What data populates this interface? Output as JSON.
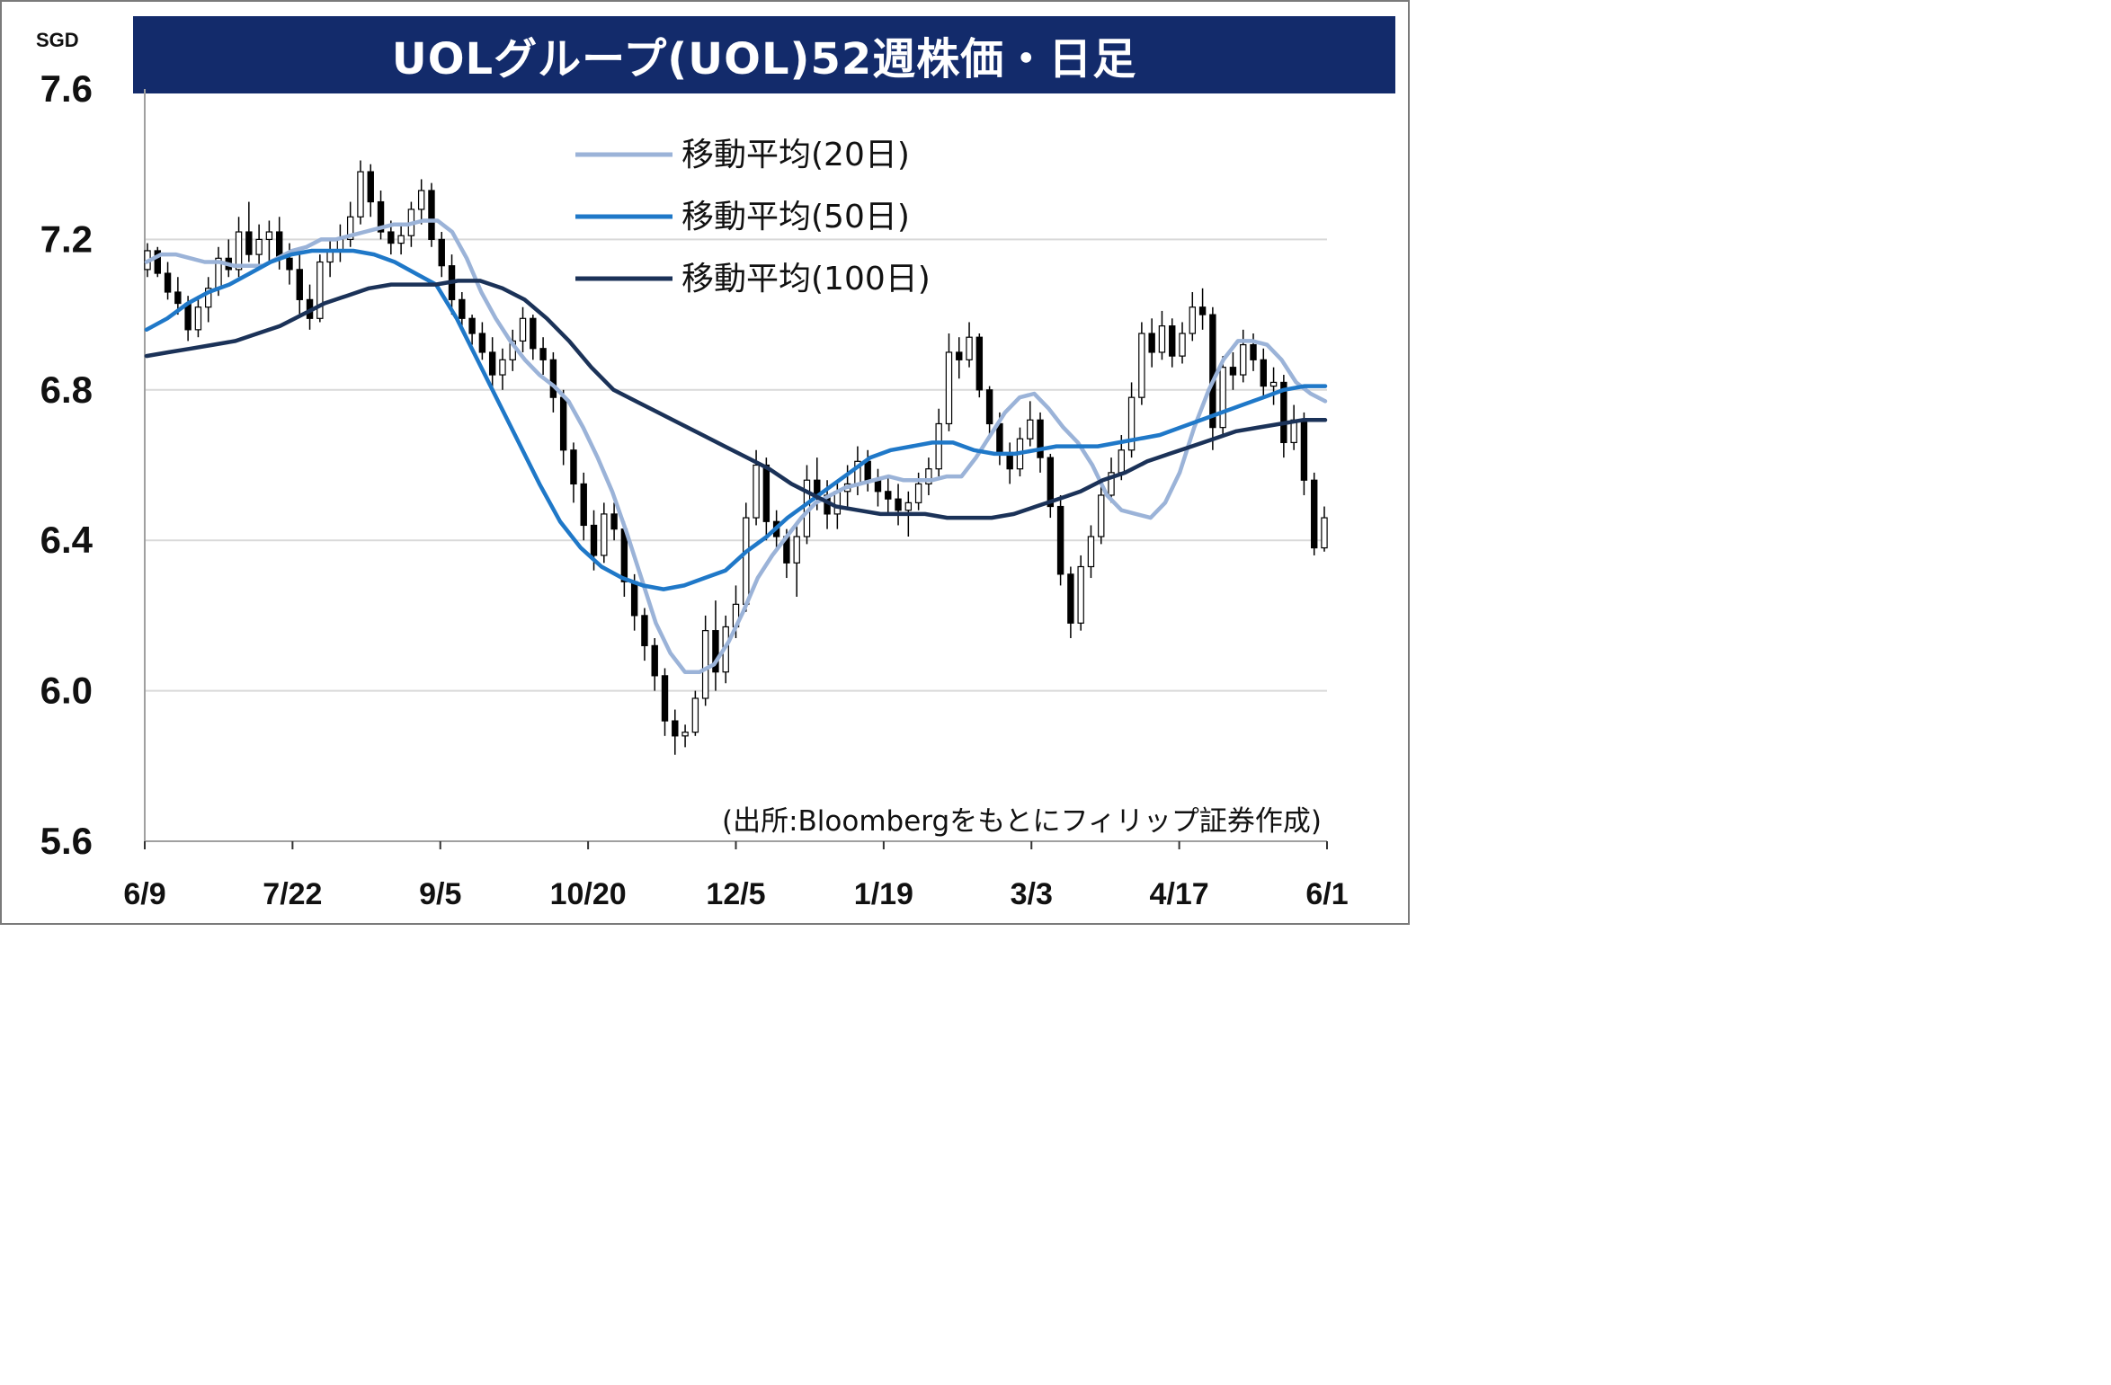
{
  "chart_data": {
    "type": "candlestick",
    "title": "UOLグループ(UOL)52週株価・日足",
    "unit": "SGD",
    "ylim": [
      5.6,
      7.6
    ],
    "yticks": [
      "7.6",
      "7.2",
      "6.8",
      "6.4",
      "6.0",
      "5.6"
    ],
    "ytick_values": [
      7.6,
      7.2,
      6.8,
      6.4,
      6.0,
      5.6
    ],
    "xticks": [
      "6/9",
      "7/22",
      "9/5",
      "10/20",
      "12/5",
      "1/19",
      "3/3",
      "4/17",
      "6/1"
    ],
    "grid": "horizontal",
    "legend_position": "top-right",
    "colors": {
      "up": "#ffffff",
      "down": "#000000",
      "ma20": "#9bb3d8",
      "ma50": "#1f78c8",
      "ma100": "#1b3258",
      "grid": "#d9d9d9",
      "title_bg": "#132b6b"
    },
    "candles": [
      [
        7.12,
        7.19,
        7.1,
        7.17
      ],
      [
        7.17,
        7.18,
        7.1,
        7.11
      ],
      [
        7.11,
        7.14,
        7.04,
        7.06
      ],
      [
        7.06,
        7.1,
        7.0,
        7.03
      ],
      [
        7.03,
        7.05,
        6.93,
        6.96
      ],
      [
        6.96,
        7.05,
        6.94,
        7.02
      ],
      [
        7.02,
        7.1,
        6.98,
        7.07
      ],
      [
        7.07,
        7.18,
        7.05,
        7.15
      ],
      [
        7.15,
        7.2,
        7.1,
        7.12
      ],
      [
        7.12,
        7.26,
        7.1,
        7.22
      ],
      [
        7.22,
        7.3,
        7.14,
        7.16
      ],
      [
        7.16,
        7.24,
        7.12,
        7.2
      ],
      [
        7.2,
        7.25,
        7.14,
        7.22
      ],
      [
        7.22,
        7.26,
        7.12,
        7.15
      ],
      [
        7.15,
        7.19,
        7.08,
        7.12
      ],
      [
        7.12,
        7.16,
        7.0,
        7.04
      ],
      [
        7.04,
        7.08,
        6.96,
        6.99
      ],
      [
        6.99,
        7.16,
        6.98,
        7.14
      ],
      [
        7.14,
        7.2,
        7.1,
        7.17
      ],
      [
        7.17,
        7.24,
        7.14,
        7.2
      ],
      [
        7.2,
        7.3,
        7.18,
        7.26
      ],
      [
        7.26,
        7.41,
        7.24,
        7.38
      ],
      [
        7.38,
        7.4,
        7.26,
        7.3
      ],
      [
        7.3,
        7.33,
        7.2,
        7.22
      ],
      [
        7.22,
        7.25,
        7.16,
        7.19
      ],
      [
        7.19,
        7.24,
        7.16,
        7.21
      ],
      [
        7.21,
        7.3,
        7.18,
        7.28
      ],
      [
        7.28,
        7.36,
        7.24,
        7.33
      ],
      [
        7.33,
        7.35,
        7.18,
        7.2
      ],
      [
        7.2,
        7.22,
        7.1,
        7.13
      ],
      [
        7.13,
        7.16,
        7.0,
        7.04
      ],
      [
        7.04,
        7.06,
        6.96,
        6.99
      ],
      [
        6.99,
        7.0,
        6.92,
        6.95
      ],
      [
        6.95,
        6.98,
        6.88,
        6.9
      ],
      [
        6.9,
        6.94,
        6.8,
        6.84
      ],
      [
        6.84,
        6.91,
        6.8,
        6.88
      ],
      [
        6.88,
        6.96,
        6.85,
        6.93
      ],
      [
        6.93,
        7.02,
        6.9,
        6.99
      ],
      [
        6.99,
        7.0,
        6.88,
        6.91
      ],
      [
        6.91,
        6.94,
        6.84,
        6.88
      ],
      [
        6.88,
        6.9,
        6.74,
        6.78
      ],
      [
        6.78,
        6.8,
        6.6,
        6.64
      ],
      [
        6.64,
        6.66,
        6.5,
        6.55
      ],
      [
        6.55,
        6.58,
        6.4,
        6.44
      ],
      [
        6.44,
        6.48,
        6.32,
        6.36
      ],
      [
        6.36,
        6.5,
        6.34,
        6.47
      ],
      [
        6.47,
        6.5,
        6.4,
        6.43
      ],
      [
        6.43,
        6.45,
        6.25,
        6.29
      ],
      [
        6.29,
        6.31,
        6.16,
        6.2
      ],
      [
        6.2,
        6.22,
        6.08,
        6.12
      ],
      [
        6.12,
        6.14,
        6.0,
        6.04
      ],
      [
        6.04,
        6.06,
        5.88,
        5.92
      ],
      [
        5.92,
        5.95,
        5.83,
        5.88
      ],
      [
        5.88,
        5.91,
        5.85,
        5.89
      ],
      [
        5.89,
        6.0,
        5.88,
        5.98
      ],
      [
        5.98,
        6.2,
        5.96,
        6.16
      ],
      [
        6.16,
        6.24,
        6.0,
        6.05
      ],
      [
        6.05,
        6.2,
        6.02,
        6.17
      ],
      [
        6.17,
        6.28,
        6.14,
        6.23
      ],
      [
        6.23,
        6.5,
        6.21,
        6.46
      ],
      [
        6.46,
        6.64,
        6.44,
        6.6
      ],
      [
        6.6,
        6.62,
        6.4,
        6.45
      ],
      [
        6.45,
        6.48,
        6.38,
        6.41
      ],
      [
        6.41,
        6.43,
        6.3,
        6.34
      ],
      [
        6.34,
        6.45,
        6.25,
        6.41
      ],
      [
        6.41,
        6.6,
        6.39,
        6.56
      ],
      [
        6.56,
        6.62,
        6.48,
        6.52
      ],
      [
        6.52,
        6.56,
        6.43,
        6.47
      ],
      [
        6.47,
        6.56,
        6.43,
        6.53
      ],
      [
        6.53,
        6.6,
        6.48,
        6.55
      ],
      [
        6.55,
        6.65,
        6.52,
        6.61
      ],
      [
        6.61,
        6.64,
        6.53,
        6.56
      ],
      [
        6.56,
        6.59,
        6.49,
        6.53
      ],
      [
        6.53,
        6.57,
        6.47,
        6.51
      ],
      [
        6.51,
        6.55,
        6.44,
        6.48
      ],
      [
        6.48,
        6.53,
        6.41,
        6.5
      ],
      [
        6.5,
        6.58,
        6.48,
        6.55
      ],
      [
        6.55,
        6.62,
        6.52,
        6.59
      ],
      [
        6.59,
        6.75,
        6.57,
        6.71
      ],
      [
        6.71,
        6.95,
        6.69,
        6.9
      ],
      [
        6.9,
        6.94,
        6.83,
        6.88
      ],
      [
        6.88,
        6.98,
        6.86,
        6.94
      ],
      [
        6.94,
        6.95,
        6.78,
        6.8
      ],
      [
        6.8,
        6.81,
        6.68,
        6.71
      ],
      [
        6.71,
        6.74,
        6.6,
        6.63
      ],
      [
        6.63,
        6.66,
        6.55,
        6.59
      ],
      [
        6.59,
        6.7,
        6.57,
        6.67
      ],
      [
        6.67,
        6.77,
        6.65,
        6.72
      ],
      [
        6.72,
        6.74,
        6.58,
        6.62
      ],
      [
        6.62,
        6.63,
        6.46,
        6.49
      ],
      [
        6.49,
        6.52,
        6.28,
        6.31
      ],
      [
        6.31,
        6.33,
        6.14,
        6.18
      ],
      [
        6.18,
        6.36,
        6.16,
        6.33
      ],
      [
        6.33,
        6.44,
        6.3,
        6.41
      ],
      [
        6.41,
        6.56,
        6.39,
        6.52
      ],
      [
        6.52,
        6.62,
        6.5,
        6.58
      ],
      [
        6.58,
        6.68,
        6.56,
        6.64
      ],
      [
        6.64,
        6.82,
        6.62,
        6.78
      ],
      [
        6.78,
        6.98,
        6.76,
        6.95
      ],
      [
        6.95,
        6.99,
        6.86,
        6.9
      ],
      [
        6.9,
        7.01,
        6.88,
        6.97
      ],
      [
        6.97,
        6.99,
        6.86,
        6.89
      ],
      [
        6.89,
        6.98,
        6.87,
        6.95
      ],
      [
        6.95,
        7.06,
        6.93,
        7.02
      ],
      [
        7.02,
        7.07,
        6.96,
        7.0
      ],
      [
        7.0,
        7.02,
        6.64,
        6.7
      ],
      [
        6.7,
        6.89,
        6.68,
        6.86
      ],
      [
        6.86,
        6.9,
        6.8,
        6.84
      ],
      [
        6.84,
        6.96,
        6.82,
        6.92
      ],
      [
        6.92,
        6.95,
        6.85,
        6.88
      ],
      [
        6.88,
        6.91,
        6.78,
        6.81
      ],
      [
        6.81,
        6.86,
        6.76,
        6.82
      ],
      [
        6.82,
        6.84,
        6.62,
        6.66
      ],
      [
        6.66,
        6.76,
        6.64,
        6.72
      ],
      [
        6.72,
        6.74,
        6.52,
        6.56
      ],
      [
        6.56,
        6.58,
        6.36,
        6.38
      ],
      [
        6.38,
        6.49,
        6.37,
        6.46
      ]
    ],
    "series": [
      {
        "name": "移動平均(20日)",
        "values": [
          7.14,
          7.16,
          7.16,
          7.15,
          7.14,
          7.14,
          7.13,
          7.13,
          7.13,
          7.15,
          7.17,
          7.18,
          7.2,
          7.2,
          7.21,
          7.22,
          7.23,
          7.24,
          7.24,
          7.25,
          7.25,
          7.22,
          7.15,
          7.06,
          6.99,
          6.93,
          6.88,
          6.84,
          6.81,
          6.77,
          6.7,
          6.62,
          6.53,
          6.42,
          6.3,
          6.18,
          6.1,
          6.05,
          6.05,
          6.07,
          6.13,
          6.21,
          6.3,
          6.36,
          6.41,
          6.46,
          6.5,
          6.52,
          6.54,
          6.55,
          6.56,
          6.57,
          6.56,
          6.56,
          6.56,
          6.57,
          6.57,
          6.62,
          6.68,
          6.74,
          6.78,
          6.79,
          6.75,
          6.7,
          6.66,
          6.6,
          6.52,
          6.48,
          6.47,
          6.46,
          6.5,
          6.58,
          6.7,
          6.8,
          6.88,
          6.93,
          6.93,
          6.92,
          6.88,
          6.82,
          6.79,
          6.77
        ]
      },
      {
        "name": "移動平均(50日)",
        "values": [
          6.96,
          6.99,
          7.03,
          7.06,
          7.08,
          7.11,
          7.14,
          7.16,
          7.17,
          7.17,
          7.17,
          7.16,
          7.14,
          7.11,
          7.08,
          6.99,
          6.88,
          6.77,
          6.66,
          6.55,
          6.45,
          6.38,
          6.33,
          6.3,
          6.28,
          6.27,
          6.28,
          6.3,
          6.32,
          6.37,
          6.41,
          6.46,
          6.5,
          6.54,
          6.58,
          6.62,
          6.64,
          6.65,
          6.66,
          6.66,
          6.64,
          6.63,
          6.63,
          6.64,
          6.65,
          6.65,
          6.65,
          6.66,
          6.67,
          6.68,
          6.7,
          6.72,
          6.74,
          6.76,
          6.78,
          6.8,
          6.81,
          6.81
        ]
      },
      {
        "name": "移動平均(100日)",
        "values": [
          6.89,
          6.9,
          6.91,
          6.92,
          6.93,
          6.95,
          6.97,
          7.0,
          7.03,
          7.05,
          7.07,
          7.08,
          7.08,
          7.08,
          7.09,
          7.09,
          7.07,
          7.04,
          6.99,
          6.93,
          6.86,
          6.8,
          6.77,
          6.74,
          6.71,
          6.68,
          6.65,
          6.62,
          6.59,
          6.55,
          6.52,
          6.49,
          6.48,
          6.47,
          6.47,
          6.47,
          6.46,
          6.46,
          6.46,
          6.47,
          6.49,
          6.51,
          6.53,
          6.56,
          6.58,
          6.61,
          6.63,
          6.65,
          6.67,
          6.69,
          6.7,
          6.71,
          6.72,
          6.72
        ]
      }
    ]
  },
  "header": {
    "title": "UOLグループ(UOL)52週株価・日足",
    "unit": "SGD"
  },
  "legend": {
    "items": [
      "移動平均(20日)",
      "移動平均(50日)",
      "移動平均(100日)"
    ]
  },
  "footer": {
    "source": "(出所:Bloombergをもとにフィリップ証券作成)"
  }
}
